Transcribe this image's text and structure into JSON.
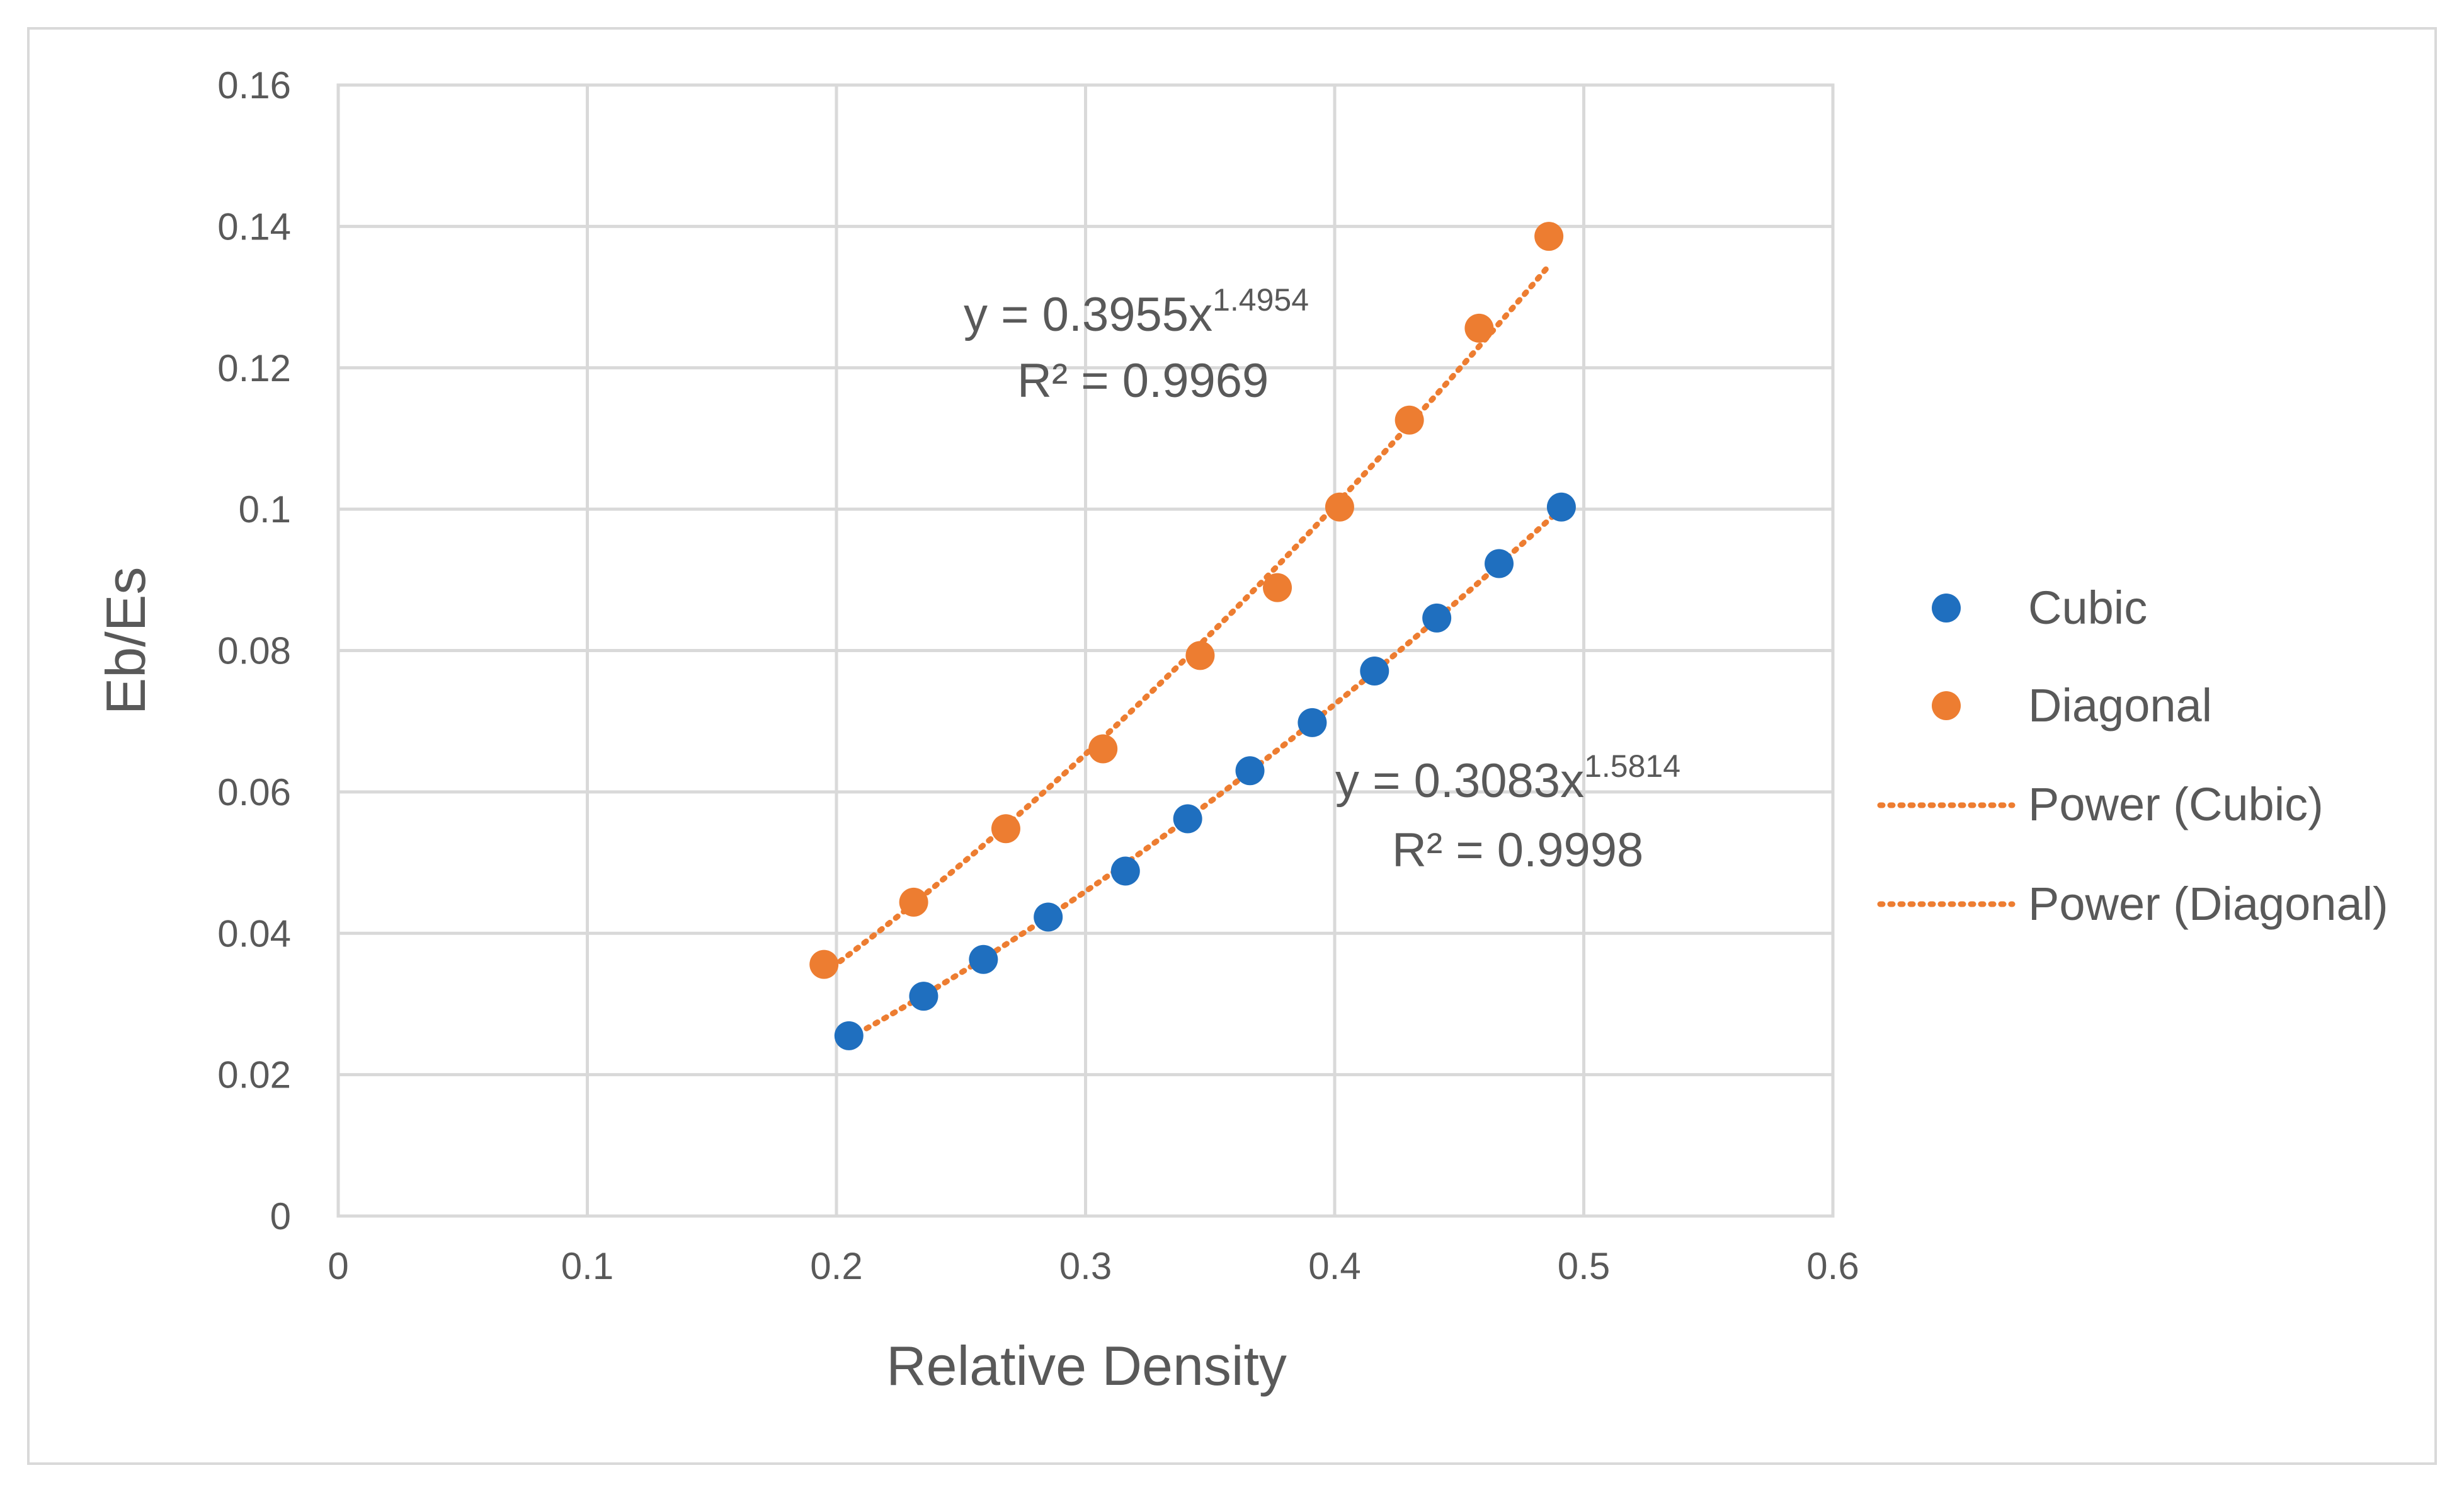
{
  "chart_data": {
    "type": "scatter",
    "title": "",
    "xlabel": "Relative Density",
    "ylabel": "Eb/Es",
    "xlim": [
      0,
      0.6
    ],
    "ylim": [
      0,
      0.16
    ],
    "x_ticks": [
      0,
      0.1,
      0.2,
      0.3,
      0.4,
      0.5,
      0.6
    ],
    "x_tick_labels": [
      "0",
      "0.1",
      "0.2",
      "0.3",
      "0.4",
      "0.5",
      "0.6"
    ],
    "y_ticks": [
      0,
      0.02,
      0.04,
      0.06,
      0.08,
      0.1,
      0.12,
      0.14,
      0.16
    ],
    "y_tick_labels": [
      "0",
      "0.02",
      "0.04",
      "0.06",
      "0.08",
      "0.1",
      "0.12",
      "0.14",
      "0.16"
    ],
    "grid": true,
    "legend_position": "right",
    "series": [
      {
        "name": "Cubic",
        "color": "#1f6fbf",
        "x": [
          0.205,
          0.235,
          0.259,
          0.285,
          0.316,
          0.341,
          0.366,
          0.391,
          0.416,
          0.441,
          0.466,
          0.491
        ],
        "y": [
          0.0255,
          0.0311,
          0.0363,
          0.0423,
          0.0488,
          0.0562,
          0.063,
          0.0698,
          0.0771,
          0.0846,
          0.0923,
          0.1003
        ]
      },
      {
        "name": "Diagonal",
        "color": "#ed7d31",
        "x": [
          0.195,
          0.231,
          0.268,
          0.307,
          0.346,
          0.377,
          0.402,
          0.43,
          0.458,
          0.486
        ],
        "y": [
          0.0356,
          0.0444,
          0.0548,
          0.0661,
          0.0793,
          0.0889,
          0.1003,
          0.1126,
          0.1256,
          0.1386
        ]
      }
    ],
    "trendlines": [
      {
        "name": "Power (Cubic)",
        "color": "#ed7d31",
        "coef": 0.3083,
        "exponent": 1.5814,
        "x_range": [
          0.205,
          0.491
        ],
        "equation_prefix": "y = 0.3083x",
        "equation_exponent": "1.5814",
        "r2_label": "R² = 0.9998"
      },
      {
        "name": "Power (Diagonal)",
        "color": "#ed7d31",
        "coef": 0.3955,
        "exponent": 1.4954,
        "x_range": [
          0.195,
          0.486
        ],
        "equation_prefix": "y = 0.3955x",
        "equation_exponent": "1.4954",
        "r2_label": "R² = 0.9969"
      }
    ]
  }
}
